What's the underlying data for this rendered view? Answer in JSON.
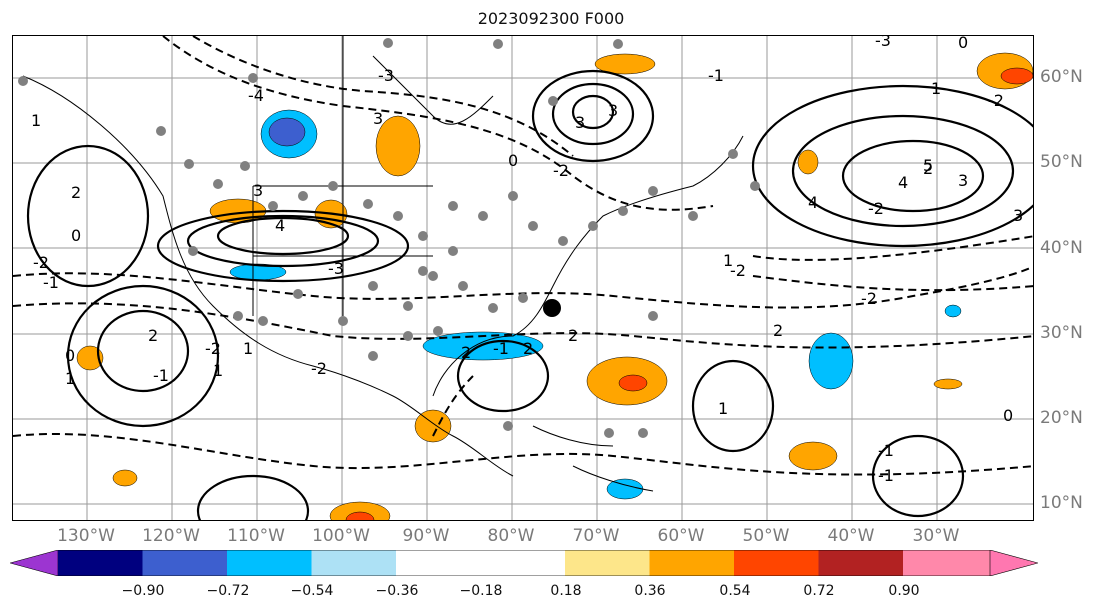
{
  "title": "2023092300 F000",
  "lat_labels": [
    "60°N",
    "50°N",
    "40°N",
    "30°N",
    "20°N",
    "10°N"
  ],
  "lon_labels": [
    "130°W",
    "120°W",
    "110°W",
    "100°W",
    "90°W",
    "80°W",
    "70°W",
    "60°W",
    "50°W",
    "40°W",
    "30°W"
  ],
  "contour_labels": [
    "1",
    "3",
    "4",
    "3",
    "2",
    "0",
    "2",
    "-2",
    "-1",
    "-3",
    "-4",
    "3",
    "-3",
    "3",
    "-2",
    "0",
    "-2",
    "3",
    "2",
    "1",
    "4",
    "5",
    "3",
    "4",
    "0",
    "-2",
    "2",
    "-2",
    "-3",
    "-1",
    "2",
    "-2",
    "1",
    "-1",
    "-2",
    "0",
    "1",
    "-1",
    "0",
    "1",
    "-2",
    "2",
    "1",
    "2",
    "-1",
    "-1",
    "1"
  ],
  "colorbar": {
    "ticks": [
      "−0.90",
      "−0.72",
      "−0.54",
      "−0.36",
      "−0.18",
      "0.18",
      "0.36",
      "0.54",
      "0.72",
      "0.90"
    ],
    "colors": [
      "#9c35d1",
      "#00007f",
      "#3d5fcf",
      "#00bfff",
      "#ade1f5",
      "#ffffff",
      "#fde68a",
      "#ffa500",
      "#ff4500",
      "#b22222",
      "#ff88aa",
      "#ff77b0"
    ]
  }
}
